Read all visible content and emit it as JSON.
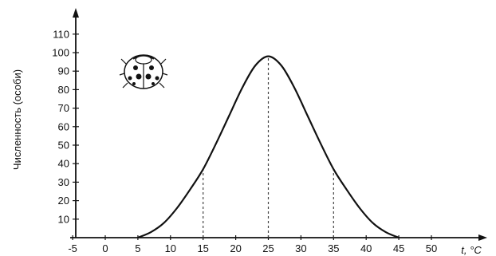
{
  "chart_data": {
    "type": "line",
    "title": "",
    "xlabel": "t, °C",
    "ylabel": "Численность (особи)",
    "xlim": [
      -5,
      52
    ],
    "ylim": [
      0,
      115
    ],
    "x_ticks": [
      -5,
      0,
      5,
      10,
      15,
      20,
      25,
      30,
      35,
      40,
      45,
      50
    ],
    "y_ticks": [
      10,
      20,
      30,
      40,
      50,
      60,
      70,
      80,
      90,
      100,
      110
    ],
    "grid": false,
    "legend": "none",
    "series": [
      {
        "x": [
          5,
          7,
          9,
          11,
          13,
          15,
          17,
          19,
          21,
          23,
          25,
          27,
          29,
          31,
          33,
          35,
          37,
          39,
          41,
          43,
          45
        ],
        "y": [
          0,
          3,
          8,
          16,
          26,
          37,
          51,
          66,
          81,
          93,
          98,
          93,
          81,
          66,
          51,
          37,
          26,
          16,
          8,
          3,
          0
        ]
      }
    ],
    "reference_lines": [
      {
        "x": 15,
        "y": 37
      },
      {
        "x": 25,
        "y": 98
      },
      {
        "x": 35,
        "y": 37
      }
    ],
    "icon": "ladybug-icon",
    "colors": {
      "line": "#111111",
      "dashed": "#444444",
      "axis": "#111111"
    }
  }
}
